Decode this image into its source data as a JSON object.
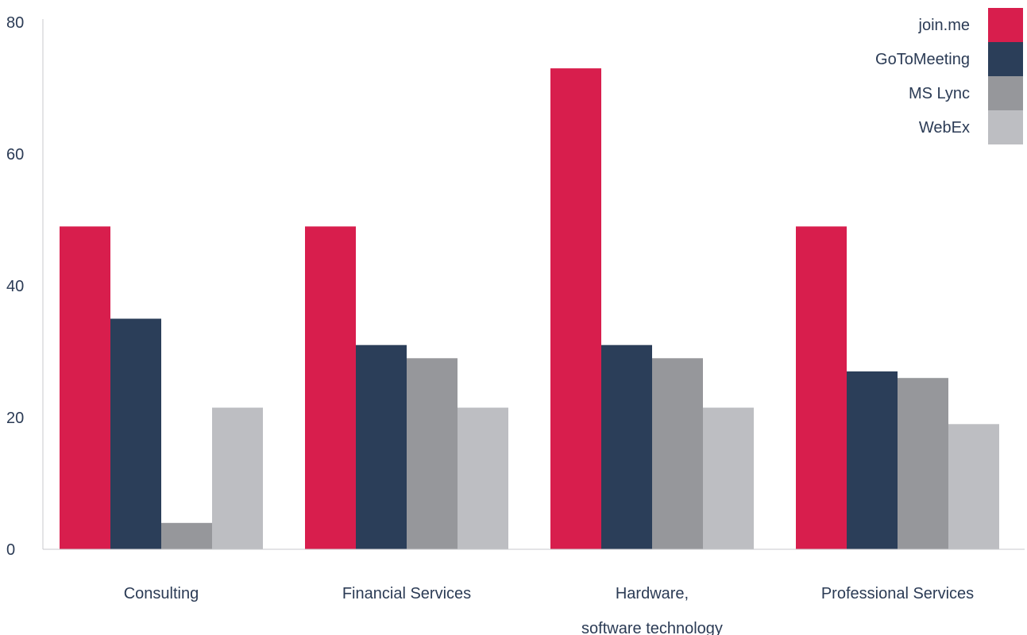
{
  "chart_data": {
    "type": "bar",
    "title": "",
    "xlabel": "",
    "ylabel": "",
    "ylim": [
      0,
      80
    ],
    "yticks": [
      0,
      20,
      40,
      60,
      80
    ],
    "grid": false,
    "legend_position": "top-right",
    "categories": [
      [
        "Consulting"
      ],
      [
        "Financial Services"
      ],
      [
        "Hardware,",
        "software technology"
      ],
      [
        "Professional Services"
      ]
    ],
    "series": [
      {
        "name": "join.me",
        "color": "#d81e4d",
        "values": [
          49,
          49,
          73,
          49
        ]
      },
      {
        "name": "GoToMeeting",
        "color": "#2b3e59",
        "values": [
          35,
          31,
          31,
          27
        ]
      },
      {
        "name": "MS Lync",
        "color": "#96979b",
        "values": [
          4,
          29,
          29,
          26
        ]
      },
      {
        "name": "WebEx",
        "color": "#bdbec2",
        "values": [
          21.5,
          21.5,
          21.5,
          19
        ]
      }
    ]
  }
}
